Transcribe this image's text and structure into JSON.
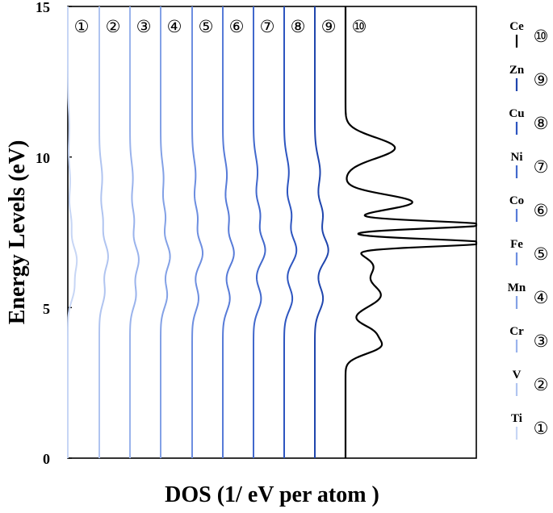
{
  "chart_data": {
    "type": "line",
    "xlabel": "DOS (1/ eV per atom )",
    "ylabel": "Energy Levels (eV)",
    "ylim": [
      0,
      15
    ],
    "y_ticks": [
      "0",
      "5",
      "10",
      "15"
    ],
    "grid": false,
    "legend_position": "right",
    "series": [
      {
        "id": "1",
        "name": "Ti",
        "marker": "①",
        "color": "#c7d6f5",
        "peaks": [
          {
            "e": 5.6,
            "a": 0.2,
            "w": 0.4
          },
          {
            "e": 6.6,
            "a": 0.3,
            "w": 0.45
          },
          {
            "e": 7.8,
            "a": 0.12,
            "w": 0.4
          },
          {
            "e": 9.2,
            "a": 0.08,
            "w": 0.5
          },
          {
            "e": 11.0,
            "a": 0.05,
            "w": 0.6
          }
        ]
      },
      {
        "id": "2",
        "name": "V",
        "marker": "②",
        "color": "#b0c4f0",
        "peaks": [
          {
            "e": 5.5,
            "a": 0.18,
            "w": 0.4
          },
          {
            "e": 6.7,
            "a": 0.3,
            "w": 0.45
          },
          {
            "e": 7.9,
            "a": 0.12,
            "w": 0.4
          },
          {
            "e": 9.3,
            "a": 0.1,
            "w": 0.5
          }
        ]
      },
      {
        "id": "3",
        "name": "Cr",
        "marker": "③",
        "color": "#9ab3ec",
        "peaks": [
          {
            "e": 5.4,
            "a": 0.2,
            "w": 0.4
          },
          {
            "e": 6.6,
            "a": 0.3,
            "w": 0.45
          },
          {
            "e": 7.9,
            "a": 0.14,
            "w": 0.4
          },
          {
            "e": 9.3,
            "a": 0.1,
            "w": 0.5
          }
        ]
      },
      {
        "id": "4",
        "name": "Mn",
        "marker": "④",
        "color": "#83a1e6",
        "peaks": [
          {
            "e": 5.4,
            "a": 0.22,
            "w": 0.4
          },
          {
            "e": 6.7,
            "a": 0.32,
            "w": 0.45
          },
          {
            "e": 8.0,
            "a": 0.16,
            "w": 0.4
          },
          {
            "e": 9.3,
            "a": 0.1,
            "w": 0.5
          }
        ]
      },
      {
        "id": "5",
        "name": "Fe",
        "marker": "⑤",
        "color": "#6d8ee0",
        "peaks": [
          {
            "e": 5.3,
            "a": 0.22,
            "w": 0.4
          },
          {
            "e": 6.8,
            "a": 0.36,
            "w": 0.45
          },
          {
            "e": 8.0,
            "a": 0.18,
            "w": 0.4
          },
          {
            "e": 9.4,
            "a": 0.12,
            "w": 0.5
          }
        ]
      },
      {
        "id": "6",
        "name": "Co",
        "marker": "⑥",
        "color": "#577bd8",
        "peaks": [
          {
            "e": 5.3,
            "a": 0.24,
            "w": 0.4
          },
          {
            "e": 6.8,
            "a": 0.38,
            "w": 0.45
          },
          {
            "e": 8.0,
            "a": 0.2,
            "w": 0.4
          },
          {
            "e": 9.4,
            "a": 0.14,
            "w": 0.5
          }
        ]
      },
      {
        "id": "7",
        "name": "Ni",
        "marker": "⑦",
        "color": "#4168cc",
        "peaks": [
          {
            "e": 5.3,
            "a": 0.26,
            "w": 0.4
          },
          {
            "e": 6.9,
            "a": 0.4,
            "w": 0.45
          },
          {
            "e": 8.1,
            "a": 0.22,
            "w": 0.4
          },
          {
            "e": 9.5,
            "a": 0.14,
            "w": 0.5
          }
        ]
      },
      {
        "id": "8",
        "name": "Cu",
        "marker": "⑧",
        "color": "#2d55c0",
        "peaks": [
          {
            "e": 5.3,
            "a": 0.28,
            "w": 0.4
          },
          {
            "e": 6.9,
            "a": 0.42,
            "w": 0.45
          },
          {
            "e": 8.1,
            "a": 0.24,
            "w": 0.4
          },
          {
            "e": 9.5,
            "a": 0.16,
            "w": 0.5
          }
        ]
      },
      {
        "id": "9",
        "name": "Zn",
        "marker": "⑨",
        "color": "#1f45ad",
        "peaks": [
          {
            "e": 5.3,
            "a": 0.28,
            "w": 0.4
          },
          {
            "e": 6.9,
            "a": 0.46,
            "w": 0.45
          },
          {
            "e": 8.1,
            "a": 0.26,
            "w": 0.4
          },
          {
            "e": 9.5,
            "a": 0.18,
            "w": 0.5
          }
        ]
      },
      {
        "id": "10",
        "name": "Ce",
        "marker": "⑩",
        "color": "#000000",
        "peaks": [
          {
            "e": 3.7,
            "a": 1.1,
            "w": 0.25
          },
          {
            "e": 4.2,
            "a": 0.85,
            "w": 0.25
          },
          {
            "e": 5.4,
            "a": 1.2,
            "w": 0.4
          },
          {
            "e": 6.4,
            "a": 0.9,
            "w": 0.35
          },
          {
            "e": 7.15,
            "a": 4.8,
            "w": 0.12
          },
          {
            "e": 7.75,
            "a": 4.8,
            "w": 0.12
          },
          {
            "e": 8.5,
            "a": 2.3,
            "w": 0.25
          },
          {
            "e": 10.3,
            "a": 1.7,
            "w": 0.35
          }
        ]
      }
    ]
  }
}
